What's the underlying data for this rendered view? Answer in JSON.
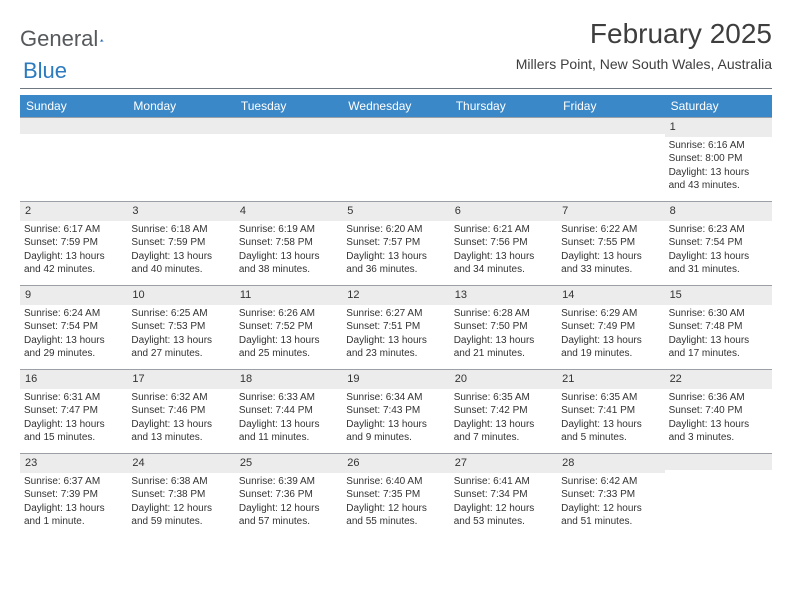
{
  "logo": {
    "text1": "General",
    "text2": "Blue"
  },
  "title": "February 2025",
  "subtitle": "Millers Point, New South Wales, Australia",
  "weekday_bg": "#3b88c8",
  "weekdays": [
    "Sunday",
    "Monday",
    "Tuesday",
    "Wednesday",
    "Thursday",
    "Friday",
    "Saturday"
  ],
  "daynum_bg": "#ececec",
  "border_color": "#9aa0a6",
  "text_color": "#333333",
  "cells": [
    {
      "day": "",
      "sunrise": "",
      "sunset": "",
      "daylight": ""
    },
    {
      "day": "",
      "sunrise": "",
      "sunset": "",
      "daylight": ""
    },
    {
      "day": "",
      "sunrise": "",
      "sunset": "",
      "daylight": ""
    },
    {
      "day": "",
      "sunrise": "",
      "sunset": "",
      "daylight": ""
    },
    {
      "day": "",
      "sunrise": "",
      "sunset": "",
      "daylight": ""
    },
    {
      "day": "",
      "sunrise": "",
      "sunset": "",
      "daylight": ""
    },
    {
      "day": "1",
      "sunrise": "Sunrise: 6:16 AM",
      "sunset": "Sunset: 8:00 PM",
      "daylight": "Daylight: 13 hours and 43 minutes."
    },
    {
      "day": "2",
      "sunrise": "Sunrise: 6:17 AM",
      "sunset": "Sunset: 7:59 PM",
      "daylight": "Daylight: 13 hours and 42 minutes."
    },
    {
      "day": "3",
      "sunrise": "Sunrise: 6:18 AM",
      "sunset": "Sunset: 7:59 PM",
      "daylight": "Daylight: 13 hours and 40 minutes."
    },
    {
      "day": "4",
      "sunrise": "Sunrise: 6:19 AM",
      "sunset": "Sunset: 7:58 PM",
      "daylight": "Daylight: 13 hours and 38 minutes."
    },
    {
      "day": "5",
      "sunrise": "Sunrise: 6:20 AM",
      "sunset": "Sunset: 7:57 PM",
      "daylight": "Daylight: 13 hours and 36 minutes."
    },
    {
      "day": "6",
      "sunrise": "Sunrise: 6:21 AM",
      "sunset": "Sunset: 7:56 PM",
      "daylight": "Daylight: 13 hours and 34 minutes."
    },
    {
      "day": "7",
      "sunrise": "Sunrise: 6:22 AM",
      "sunset": "Sunset: 7:55 PM",
      "daylight": "Daylight: 13 hours and 33 minutes."
    },
    {
      "day": "8",
      "sunrise": "Sunrise: 6:23 AM",
      "sunset": "Sunset: 7:54 PM",
      "daylight": "Daylight: 13 hours and 31 minutes."
    },
    {
      "day": "9",
      "sunrise": "Sunrise: 6:24 AM",
      "sunset": "Sunset: 7:54 PM",
      "daylight": "Daylight: 13 hours and 29 minutes."
    },
    {
      "day": "10",
      "sunrise": "Sunrise: 6:25 AM",
      "sunset": "Sunset: 7:53 PM",
      "daylight": "Daylight: 13 hours and 27 minutes."
    },
    {
      "day": "11",
      "sunrise": "Sunrise: 6:26 AM",
      "sunset": "Sunset: 7:52 PM",
      "daylight": "Daylight: 13 hours and 25 minutes."
    },
    {
      "day": "12",
      "sunrise": "Sunrise: 6:27 AM",
      "sunset": "Sunset: 7:51 PM",
      "daylight": "Daylight: 13 hours and 23 minutes."
    },
    {
      "day": "13",
      "sunrise": "Sunrise: 6:28 AM",
      "sunset": "Sunset: 7:50 PM",
      "daylight": "Daylight: 13 hours and 21 minutes."
    },
    {
      "day": "14",
      "sunrise": "Sunrise: 6:29 AM",
      "sunset": "Sunset: 7:49 PM",
      "daylight": "Daylight: 13 hours and 19 minutes."
    },
    {
      "day": "15",
      "sunrise": "Sunrise: 6:30 AM",
      "sunset": "Sunset: 7:48 PM",
      "daylight": "Daylight: 13 hours and 17 minutes."
    },
    {
      "day": "16",
      "sunrise": "Sunrise: 6:31 AM",
      "sunset": "Sunset: 7:47 PM",
      "daylight": "Daylight: 13 hours and 15 minutes."
    },
    {
      "day": "17",
      "sunrise": "Sunrise: 6:32 AM",
      "sunset": "Sunset: 7:46 PM",
      "daylight": "Daylight: 13 hours and 13 minutes."
    },
    {
      "day": "18",
      "sunrise": "Sunrise: 6:33 AM",
      "sunset": "Sunset: 7:44 PM",
      "daylight": "Daylight: 13 hours and 11 minutes."
    },
    {
      "day": "19",
      "sunrise": "Sunrise: 6:34 AM",
      "sunset": "Sunset: 7:43 PM",
      "daylight": "Daylight: 13 hours and 9 minutes."
    },
    {
      "day": "20",
      "sunrise": "Sunrise: 6:35 AM",
      "sunset": "Sunset: 7:42 PM",
      "daylight": "Daylight: 13 hours and 7 minutes."
    },
    {
      "day": "21",
      "sunrise": "Sunrise: 6:35 AM",
      "sunset": "Sunset: 7:41 PM",
      "daylight": "Daylight: 13 hours and 5 minutes."
    },
    {
      "day": "22",
      "sunrise": "Sunrise: 6:36 AM",
      "sunset": "Sunset: 7:40 PM",
      "daylight": "Daylight: 13 hours and 3 minutes."
    },
    {
      "day": "23",
      "sunrise": "Sunrise: 6:37 AM",
      "sunset": "Sunset: 7:39 PM",
      "daylight": "Daylight: 13 hours and 1 minute."
    },
    {
      "day": "24",
      "sunrise": "Sunrise: 6:38 AM",
      "sunset": "Sunset: 7:38 PM",
      "daylight": "Daylight: 12 hours and 59 minutes."
    },
    {
      "day": "25",
      "sunrise": "Sunrise: 6:39 AM",
      "sunset": "Sunset: 7:36 PM",
      "daylight": "Daylight: 12 hours and 57 minutes."
    },
    {
      "day": "26",
      "sunrise": "Sunrise: 6:40 AM",
      "sunset": "Sunset: 7:35 PM",
      "daylight": "Daylight: 12 hours and 55 minutes."
    },
    {
      "day": "27",
      "sunrise": "Sunrise: 6:41 AM",
      "sunset": "Sunset: 7:34 PM",
      "daylight": "Daylight: 12 hours and 53 minutes."
    },
    {
      "day": "28",
      "sunrise": "Sunrise: 6:42 AM",
      "sunset": "Sunset: 7:33 PM",
      "daylight": "Daylight: 12 hours and 51 minutes."
    },
    {
      "day": "",
      "sunrise": "",
      "sunset": "",
      "daylight": ""
    }
  ]
}
